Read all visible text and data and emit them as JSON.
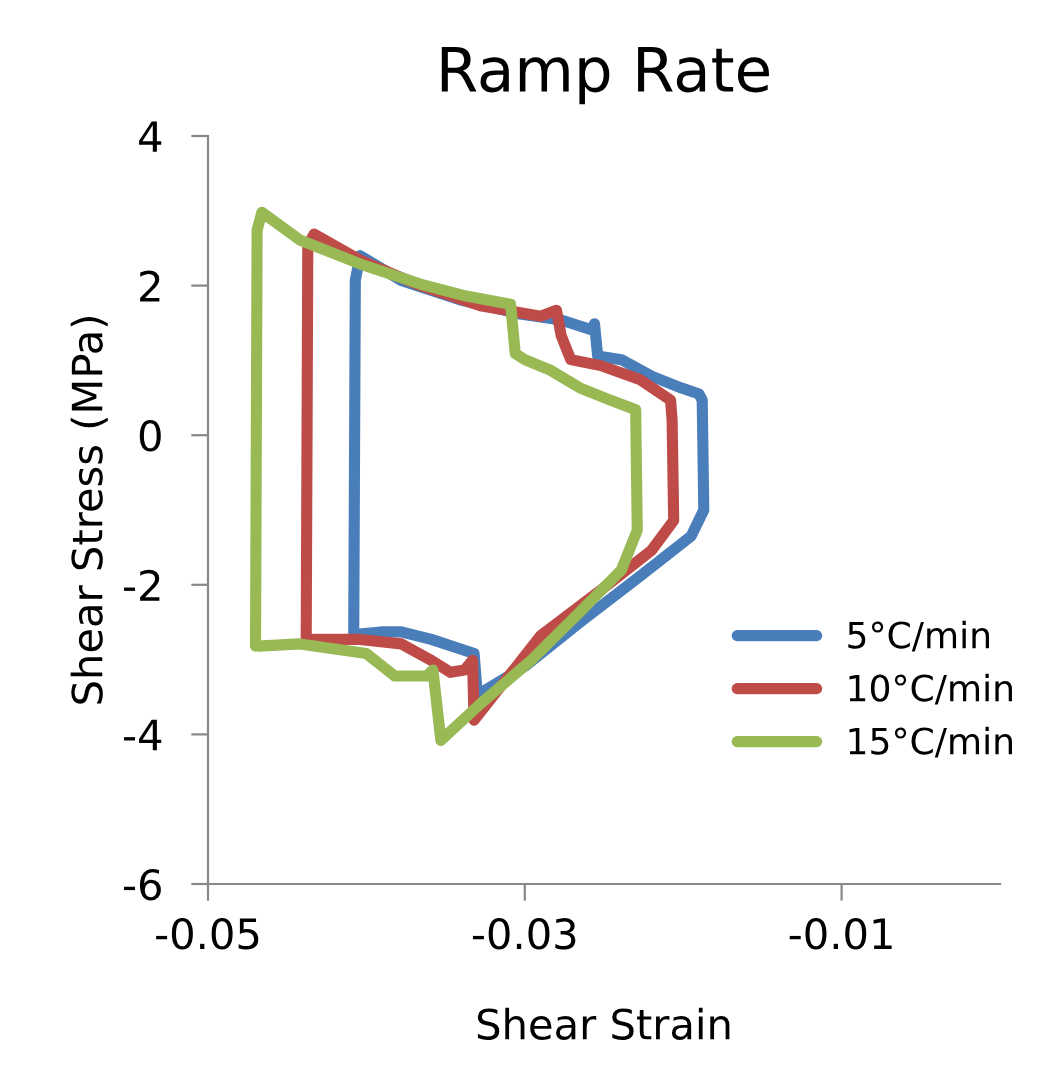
{
  "chart_data": {
    "type": "line",
    "title": "Ramp Rate",
    "xlabel": "Shear Strain",
    "ylabel": "Shear Stress (MPa)",
    "xlim": [
      -0.05,
      0.0
    ],
    "xticks": [
      -0.05,
      -0.03,
      -0.01
    ],
    "ylim": [
      -6,
      4
    ],
    "yticks": [
      -6,
      -4,
      -2,
      0,
      2,
      4
    ],
    "grid": false,
    "legend": "bottom right",
    "marker": "none",
    "line_style": "solid",
    "series": [
      {
        "name": "5°C/min",
        "color": "#4a7ebb",
        "x": [
          -0.0408,
          -0.0407,
          -0.0404,
          -0.0378,
          -0.0341,
          -0.0303,
          -0.0277,
          -0.0258,
          -0.0256,
          -0.0254,
          -0.0239,
          -0.022,
          -0.0201,
          -0.019,
          -0.0188,
          -0.0187,
          -0.0195,
          -0.0227,
          -0.0265,
          -0.03,
          -0.0325,
          -0.033,
          -0.0332,
          -0.0343,
          -0.0359,
          -0.0378,
          -0.0391,
          -0.0406
        ],
        "values": [
          -2.68,
          2.07,
          2.4,
          2.07,
          1.81,
          1.62,
          1.54,
          1.41,
          1.49,
          1.06,
          1.01,
          0.79,
          0.63,
          0.55,
          0.47,
          -1.0,
          -1.35,
          -1.88,
          -2.5,
          -3.09,
          -3.41,
          -3.46,
          -2.92,
          -2.84,
          -2.73,
          -2.63,
          -2.63,
          -2.66
        ]
      },
      {
        "name": "10°C/min",
        "color": "#be4b48",
        "x": [
          -0.0438,
          -0.0437,
          -0.0433,
          -0.0404,
          -0.0366,
          -0.0328,
          -0.029,
          -0.028,
          -0.0277,
          -0.0271,
          -0.0252,
          -0.0227,
          -0.0208,
          -0.0207,
          -0.0206,
          -0.022,
          -0.0252,
          -0.029,
          -0.0332,
          -0.0333,
          -0.0338,
          -0.0347,
          -0.0359,
          -0.0378,
          -0.0404,
          -0.0436
        ],
        "values": [
          -2.73,
          2.53,
          2.69,
          2.34,
          2.0,
          1.73,
          1.59,
          1.67,
          1.33,
          1.01,
          0.93,
          0.74,
          0.47,
          0.2,
          -1.14,
          -1.54,
          -2.07,
          -2.68,
          -3.81,
          -3.01,
          -3.14,
          -3.17,
          -3.01,
          -2.79,
          -2.73,
          -2.73
        ]
      },
      {
        "name": "15°C/min",
        "color": "#98b954",
        "x": [
          -0.047,
          -0.0469,
          -0.0466,
          -0.0442,
          -0.0404,
          -0.0366,
          -0.0337,
          -0.0309,
          -0.0306,
          -0.03,
          -0.0284,
          -0.0265,
          -0.0246,
          -0.023,
          -0.0229,
          -0.0239,
          -0.0265,
          -0.0296,
          -0.0328,
          -0.0353,
          -0.0358,
          -0.0362,
          -0.0382,
          -0.04,
          -0.0442,
          -0.0468
        ],
        "values": [
          -2.82,
          2.74,
          2.98,
          2.61,
          2.29,
          2.02,
          1.86,
          1.75,
          1.09,
          1.01,
          0.87,
          0.63,
          0.47,
          0.34,
          -1.27,
          -1.8,
          -2.36,
          -3.01,
          -3.59,
          -4.08,
          -3.14,
          -3.22,
          -3.22,
          -2.92,
          -2.79,
          -2.82
        ]
      }
    ]
  }
}
